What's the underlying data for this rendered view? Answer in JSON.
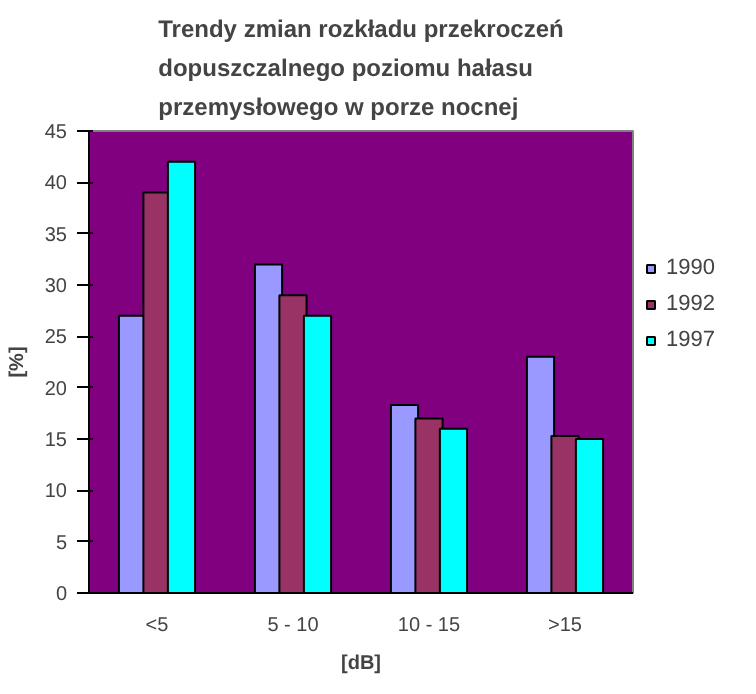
{
  "chart_data": {
    "type": "bar",
    "title": "Trendy zmian rozkładu przekroczeń dopuszczalnego poziomu hałasu przemysłowego w porze nocnej",
    "xlabel": "[dB]",
    "ylabel": "[%]",
    "categories": [
      "<5",
      "5 - 10",
      "10 - 15",
      ">15"
    ],
    "series": [
      {
        "name": "1990",
        "color": "#9999ff",
        "values": [
          27,
          32,
          18.3,
          23
        ]
      },
      {
        "name": "1992",
        "color": "#993366",
        "values": [
          39,
          29,
          17,
          15.3
        ]
      },
      {
        "name": "1997",
        "color": "#00ffff",
        "values": [
          42,
          27,
          16,
          15
        ]
      }
    ],
    "ylim": [
      0,
      45
    ],
    "yticks": [
      0,
      5,
      10,
      15,
      20,
      25,
      30,
      35,
      40,
      45
    ],
    "grid": false,
    "legend": "right"
  }
}
